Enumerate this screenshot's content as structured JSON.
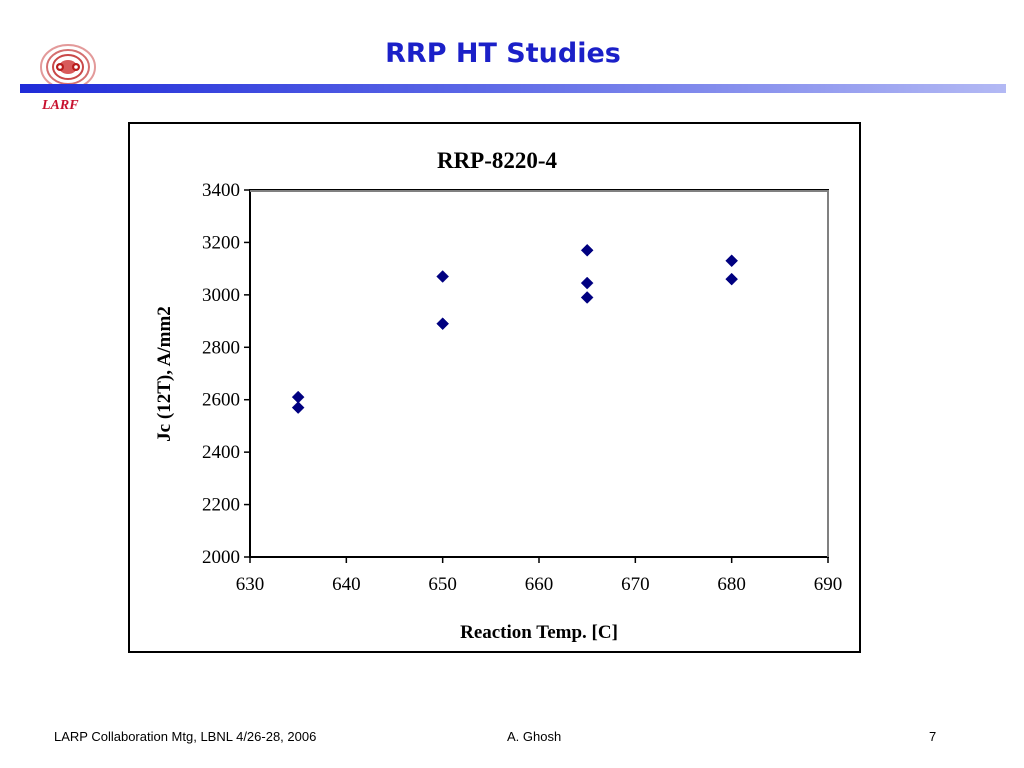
{
  "slide": {
    "title": "RRP HT Studies",
    "logo_text": "LARF",
    "accent_color": "#1b20c8"
  },
  "footer": {
    "left": "LARP Collaboration Mtg, LBNL 4/26-28, 2006",
    "center": "A. Ghosh",
    "right": "7"
  },
  "chart_data": {
    "type": "scatter",
    "title": "RRP-8220-4",
    "xlabel": "Reaction Temp. [C]",
    "ylabel": "Jc (12T), A/mm2",
    "xlim": [
      630,
      690
    ],
    "ylim": [
      2000,
      3400
    ],
    "x_ticks": [
      630,
      640,
      650,
      660,
      670,
      680,
      690
    ],
    "y_ticks": [
      2000,
      2200,
      2400,
      2600,
      2800,
      3000,
      3200,
      3400
    ],
    "grid": false,
    "marker": "diamond",
    "marker_color": "#000080",
    "points": [
      {
        "x": 635,
        "y": 2610
      },
      {
        "x": 635,
        "y": 2570
      },
      {
        "x": 650,
        "y": 3070
      },
      {
        "x": 650,
        "y": 2890
      },
      {
        "x": 665,
        "y": 3170
      },
      {
        "x": 665,
        "y": 3045
      },
      {
        "x": 665,
        "y": 2990
      },
      {
        "x": 680,
        "y": 3130
      },
      {
        "x": 680,
        "y": 3060
      }
    ]
  }
}
